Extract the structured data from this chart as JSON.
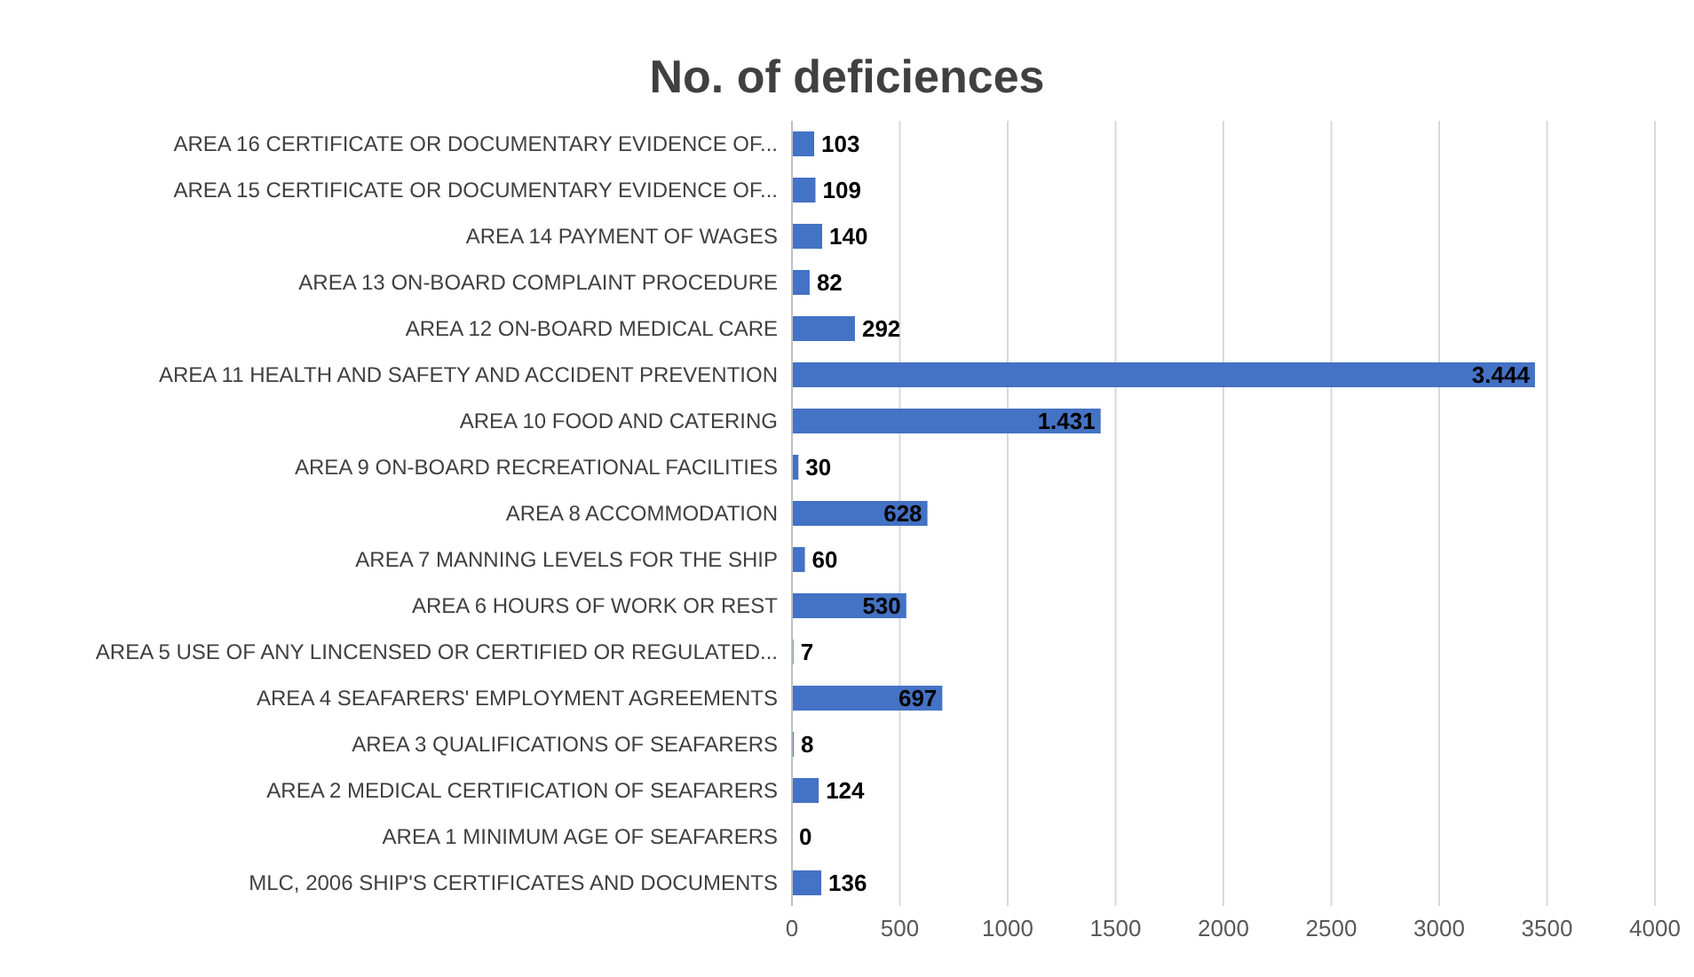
{
  "chart_data": {
    "type": "bar",
    "orientation": "horizontal",
    "title": "No. of deficiences",
    "categories": [
      "AREA 16 CERTIFICATE OR DOCUMENTARY EVIDENCE OF...",
      "AREA 15 CERTIFICATE OR DOCUMENTARY EVIDENCE OF...",
      "AREA 14 PAYMENT OF WAGES",
      "AREA 13 ON-BOARD COMPLAINT PROCEDURE",
      "AREA 12 ON-BOARD MEDICAL CARE",
      "AREA 11 HEALTH AND SAFETY AND ACCIDENT PREVENTION",
      "AREA 10 FOOD AND CATERING",
      "AREA 9 ON-BOARD RECREATIONAL FACILITIES",
      "AREA 8 ACCOMMODATION",
      "AREA 7 MANNING LEVELS FOR THE SHIP",
      "AREA 6 HOURS OF WORK OR REST",
      "AREA 5 USE OF ANY LINCENSED OR CERTIFIED OR REGULATED...",
      "AREA 4 SEAFARERS' EMPLOYMENT AGREEMENTS",
      "AREA 3 QUALIFICATIONS OF SEAFARERS",
      "AREA 2 MEDICAL CERTIFICATION OF SEAFARERS",
      "AREA 1 MINIMUM AGE OF SEAFARERS",
      "MLC, 2006 SHIP'S CERTIFICATES AND DOCUMENTS"
    ],
    "values": [
      103,
      109,
      140,
      82,
      292,
      3444,
      1431,
      30,
      628,
      60,
      530,
      7,
      697,
      8,
      124,
      0,
      136
    ],
    "value_labels": [
      "103",
      "109",
      "140",
      "82",
      "292",
      "3.444",
      "1.431",
      "30",
      "628",
      "60",
      "530",
      "7",
      "697",
      "8",
      "124",
      "0",
      "136"
    ],
    "color": "#4472c4",
    "xlim": [
      0,
      4000
    ],
    "xticks": [
      0,
      500,
      1000,
      1500,
      2000,
      2500,
      3000,
      3500,
      4000
    ],
    "grid": "x",
    "legend": false
  }
}
